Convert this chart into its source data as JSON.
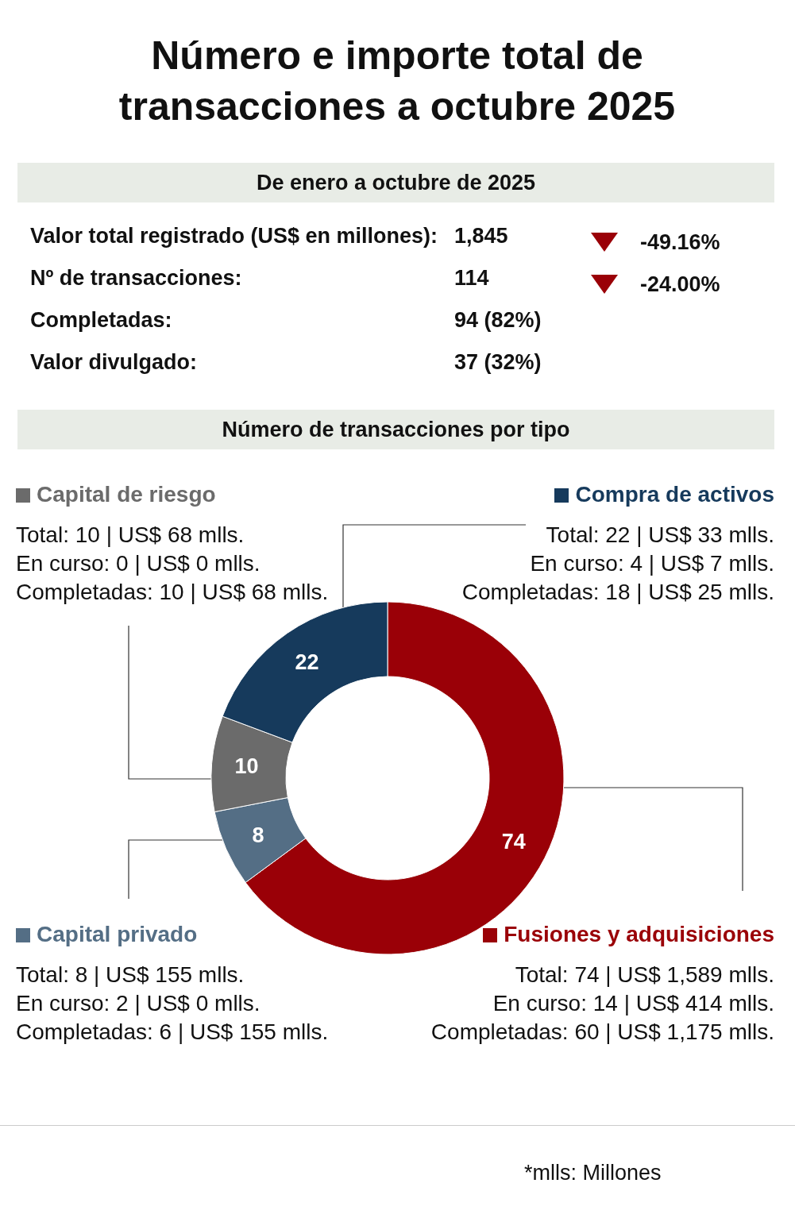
{
  "chart_data": {
    "type": "donut",
    "title": "Número e importe total de transacciones a octubre 2025",
    "subtitle": "De enero a octubre de 2025",
    "categories": [
      "Fusiones y adquisiciones",
      "Capital privado",
      "Capital de riesgo",
      "Compra de activos"
    ],
    "values": [
      74,
      8,
      10,
      22
    ],
    "colors": [
      "#9a0007",
      "#546e85",
      "#6b6b6b",
      "#163a5c"
    ],
    "data_labels": true,
    "legend": "top",
    "annotations": [
      "Valor total registrado (US$ en millones):",
      "1,845",
      "-49.16%",
      "Nº de transacciones:",
      "114",
      "-24.00%",
      "Completadas:",
      "94 (82%)",
      "Valor divulgado:",
      "37 (32%)",
      "Número de transacciones por tipo",
      "Total: 74 | US$ 1,589 mlls.",
      "En curso: 14 | US$ 414 mlls.",
      "Completadas: 60 | US$ 1,175 mlls.",
      "Total: 8 | US$ 155 mlls.",
      "En curso: 2 | US$ 0 mlls.",
      "Completadas: 6 | US$ 155 mlls.",
      "Total: 10 | US$ 68 mlls.",
      "En curso: 0 | US$ 0 mlls.",
      "Completadas: 10 | US$ 68 mlls.",
      "Total: 22 | US$ 33 mlls.",
      "En curso: 4 | US$ 7 mlls.",
      "Completadas: 18 | US$ 25 mlls.",
      "*mlls: Millones"
    ]
  }
}
